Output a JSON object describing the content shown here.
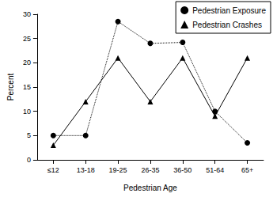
{
  "chart_data": {
    "type": "line",
    "x_label": "Pedestrian Age",
    "y_label": "Percent",
    "categories": [
      "≤12",
      "13-18",
      "19-25",
      "26-35",
      "36-50",
      "51-64",
      "65+"
    ],
    "series": [
      {
        "name": "Pedestrian Exposure",
        "color": "#000000",
        "marker": "circle",
        "line_style": "dotted",
        "values": [
          5,
          5,
          28.5,
          24,
          24.2,
          10,
          3.5
        ]
      },
      {
        "name": "Pedestrian Crashes",
        "color": "#000000",
        "marker": "triangle",
        "line_style": "solid",
        "values": [
          3,
          12,
          21,
          12,
          21,
          9,
          21
        ]
      }
    ],
    "ylim": [
      0,
      30
    ],
    "yticks": [
      0,
      5,
      10,
      15,
      20,
      25,
      30
    ],
    "grid": false,
    "legend": "top-right"
  }
}
